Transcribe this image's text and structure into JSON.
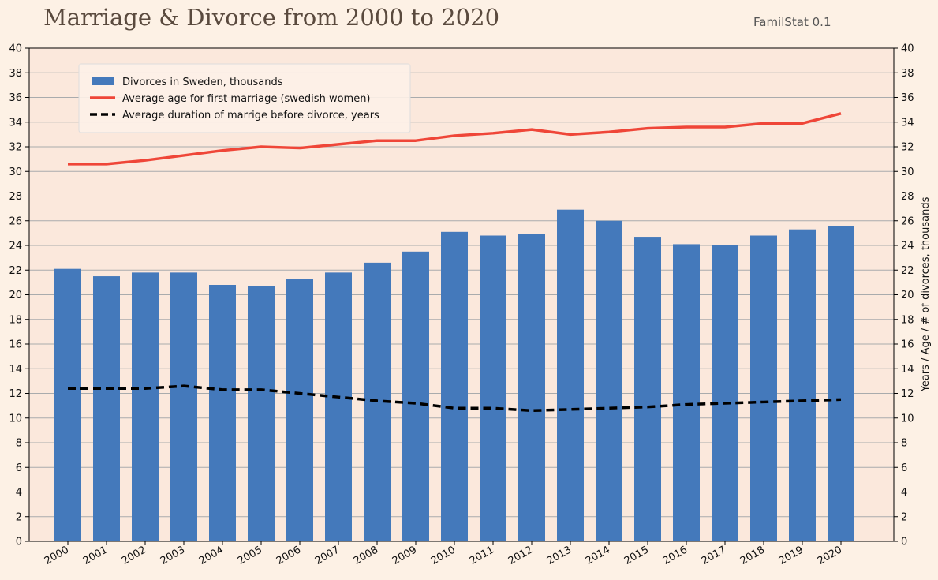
{
  "header": {
    "title": "Marriage & Divorce from 2000 to 2020",
    "app_name": "FamilStat 0.1"
  },
  "colors": {
    "page_background": "#fdf1e5",
    "plot_background": "#fbe8dc",
    "bars": "#4479bb",
    "age_line": "#ef4638",
    "duration_line": "#000000",
    "grid": "#a9abad"
  },
  "chart_data": {
    "type": "bar",
    "title": "Marriage & Divorce from 2000 to 2020",
    "xlabel": "",
    "ylabel": "",
    "ylabel_right": "Years / Age / # of divorces, thousands",
    "ylim": [
      0,
      40
    ],
    "yticks": [
      0,
      2,
      4,
      6,
      8,
      10,
      12,
      14,
      16,
      18,
      20,
      22,
      24,
      26,
      28,
      30,
      32,
      34,
      36,
      38,
      40
    ],
    "grid": true,
    "legend_position": "top-left",
    "categories": [
      "2000",
      "2001",
      "2002",
      "2003",
      "2004",
      "2005",
      "2006",
      "2007",
      "2008",
      "2009",
      "2010",
      "2011",
      "2012",
      "2013",
      "2014",
      "2015",
      "2016",
      "2017",
      "2018",
      "2019",
      "2020"
    ],
    "series": [
      {
        "name": "Divorces in Sweden, thousands",
        "type": "bar",
        "color": "#4479bb",
        "values": [
          22.1,
          21.5,
          21.8,
          21.8,
          20.8,
          20.7,
          21.3,
          21.8,
          22.6,
          23.5,
          25.1,
          24.8,
          24.9,
          26.9,
          26.0,
          24.7,
          24.1,
          24.0,
          24.8,
          25.3,
          25.6
        ]
      },
      {
        "name": "Average age for first marriage (swedish women)",
        "type": "line",
        "style": "solid",
        "color": "#ef4638",
        "values": [
          30.6,
          30.6,
          30.9,
          31.3,
          31.7,
          32.0,
          31.9,
          32.2,
          32.5,
          32.5,
          32.9,
          33.1,
          33.4,
          33.0,
          33.2,
          33.5,
          33.6,
          33.6,
          33.9,
          33.9,
          34.7
        ]
      },
      {
        "name": "Average duration of marrige before divorce, years",
        "type": "line",
        "style": "dashed",
        "color": "#000000",
        "values": [
          12.4,
          12.4,
          12.4,
          12.6,
          12.3,
          12.3,
          12.0,
          11.7,
          11.4,
          11.2,
          10.8,
          10.8,
          10.6,
          10.7,
          10.8,
          10.9,
          11.1,
          11.2,
          11.3,
          11.4,
          11.5
        ]
      }
    ]
  }
}
